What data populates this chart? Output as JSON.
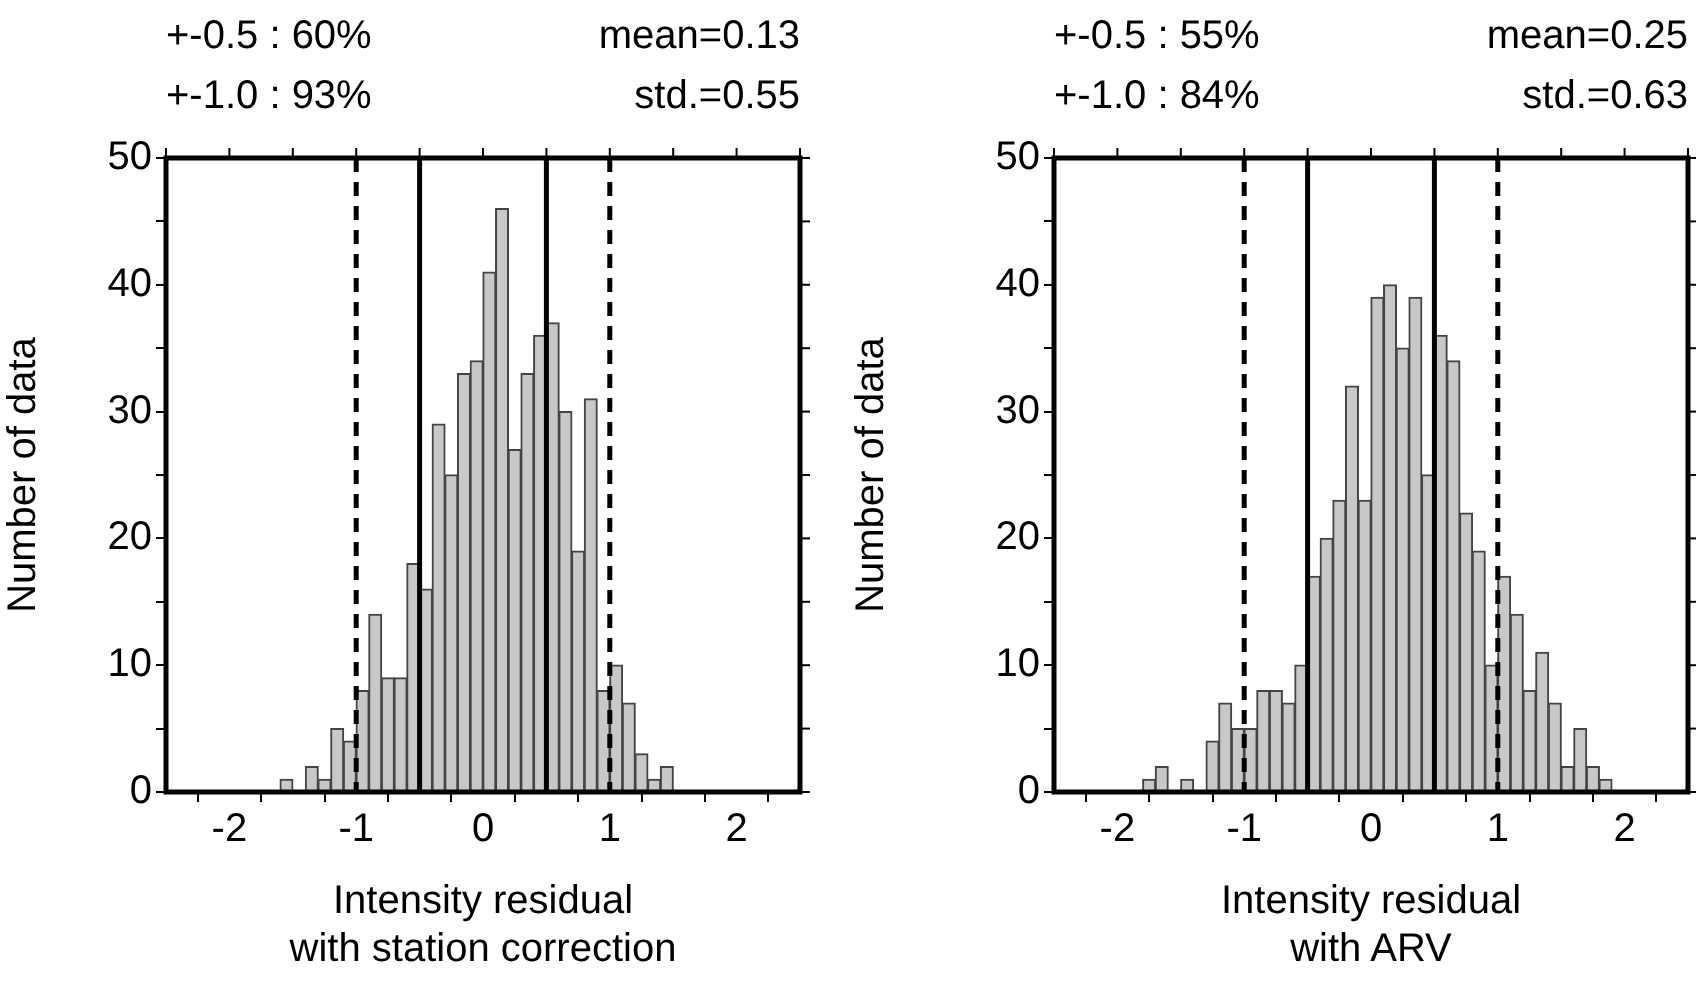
{
  "chart_data": [
    {
      "type": "histogram",
      "xlabel": "Intensity residual\nwith station correction",
      "ylabel": "Number of data",
      "color": "#c8c8c8",
      "annotations": [
        "+-0.5 : 60%",
        "+-1.0 : 93%",
        "mean=0.13",
        "std.=0.55"
      ],
      "bins": [
        -1.6,
        -1.5,
        -1.4,
        -1.3,
        -1.2,
        -1.1,
        -1.0,
        -0.9,
        -0.8,
        -0.7,
        -0.6,
        -0.5,
        -0.4,
        -0.3,
        -0.2,
        -0.1,
        0,
        0.1,
        0.2,
        0.3,
        0.4,
        0.5,
        0.6,
        0.7,
        0.8,
        0.9,
        1.0,
        1.1,
        1.2,
        1.3,
        1.4,
        1.5
      ],
      "values": [
        1,
        0,
        2,
        1,
        5,
        4,
        8,
        14,
        9,
        9,
        18,
        16,
        29,
        25,
        33,
        34,
        41,
        46,
        27,
        33,
        36,
        37,
        30,
        19,
        31,
        8,
        10,
        7,
        3,
        1,
        2
      ],
      "xlim": [
        -2.5,
        2.5
      ],
      "xticks": [
        {
          "value": -2.5,
          "label": null
        },
        -2,
        {
          "value": -1.5,
          "label": null
        },
        -1,
        {
          "value": -0.5,
          "label": null
        },
        0,
        {
          "value": 0.5,
          "label": null
        },
        1,
        {
          "value": 1.5,
          "label": null
        },
        2,
        {
          "value": 2.5,
          "label": null
        }
      ],
      "ylim": [
        0,
        50
      ],
      "yticks": [
        0,
        {
          "value": 5,
          "label": null
        },
        10,
        {
          "value": 15,
          "label": null
        },
        20,
        {
          "value": 25,
          "label": null
        },
        30,
        {
          "value": 35,
          "label": null
        },
        40,
        {
          "value": 45,
          "label": null
        },
        50
      ],
      "ref_lines": [
        {
          "axis": "x",
          "value": -1,
          "line_style": "dashed"
        },
        {
          "axis": "x",
          "value": -0.5,
          "line_style": "solid"
        },
        {
          "axis": "x",
          "value": 0.5,
          "line_style": "solid"
        },
        {
          "axis": "x",
          "value": 1,
          "line_style": "dashed"
        }
      ]
    },
    {
      "type": "histogram",
      "xlabel": "Intensity residual\nwith ARV",
      "ylabel": "Number of data",
      "color": "#c8c8c8",
      "annotations": [
        "+-0.5 : 55%",
        "+-1.0 : 84%",
        "mean=0.25",
        "std.=0.63"
      ],
      "bins": [
        -1.8,
        -1.7,
        -1.6,
        -1.5,
        -1.4,
        -1.3,
        -1.2,
        -1.1,
        -1.0,
        -0.9,
        -0.8,
        -0.7,
        -0.6,
        -0.5,
        -0.4,
        -0.3,
        -0.2,
        -0.1,
        0,
        0.1,
        0.2,
        0.3,
        0.4,
        0.5,
        0.6,
        0.7,
        0.8,
        0.9,
        1.0,
        1.1,
        1.2,
        1.3,
        1.4,
        1.5,
        1.6,
        1.7,
        1.8,
        1.9
      ],
      "values": [
        1,
        2,
        0,
        1,
        0,
        4,
        7,
        5,
        5,
        8,
        8,
        7,
        10,
        17,
        20,
        23,
        32,
        23,
        39,
        40,
        35,
        39,
        25,
        36,
        34,
        22,
        19,
        10,
        17,
        14,
        8,
        11,
        7,
        2,
        5,
        2,
        1
      ],
      "xlim": [
        -2.5,
        2.5
      ],
      "xticks": [
        {
          "value": -2.5,
          "label": null
        },
        -2,
        {
          "value": -1.5,
          "label": null
        },
        -1,
        {
          "value": -0.5,
          "label": null
        },
        0,
        {
          "value": 0.5,
          "label": null
        },
        1,
        {
          "value": 1.5,
          "label": null
        },
        2,
        {
          "value": 2.5,
          "label": null
        }
      ],
      "ylim": [
        0,
        50
      ],
      "yticks": [
        0,
        {
          "value": 5,
          "label": null
        },
        10,
        {
          "value": 15,
          "label": null
        },
        20,
        {
          "value": 25,
          "label": null
        },
        30,
        {
          "value": 35,
          "label": null
        },
        40,
        {
          "value": 45,
          "label": null
        },
        50
      ],
      "ref_lines": [
        {
          "axis": "x",
          "value": -1,
          "line_style": "dashed"
        },
        {
          "axis": "x",
          "value": -0.5,
          "line_style": "solid"
        },
        {
          "axis": "x",
          "value": 0.5,
          "line_style": "solid"
        },
        {
          "axis": "x",
          "value": 1,
          "line_style": "dashed"
        }
      ]
    }
  ]
}
